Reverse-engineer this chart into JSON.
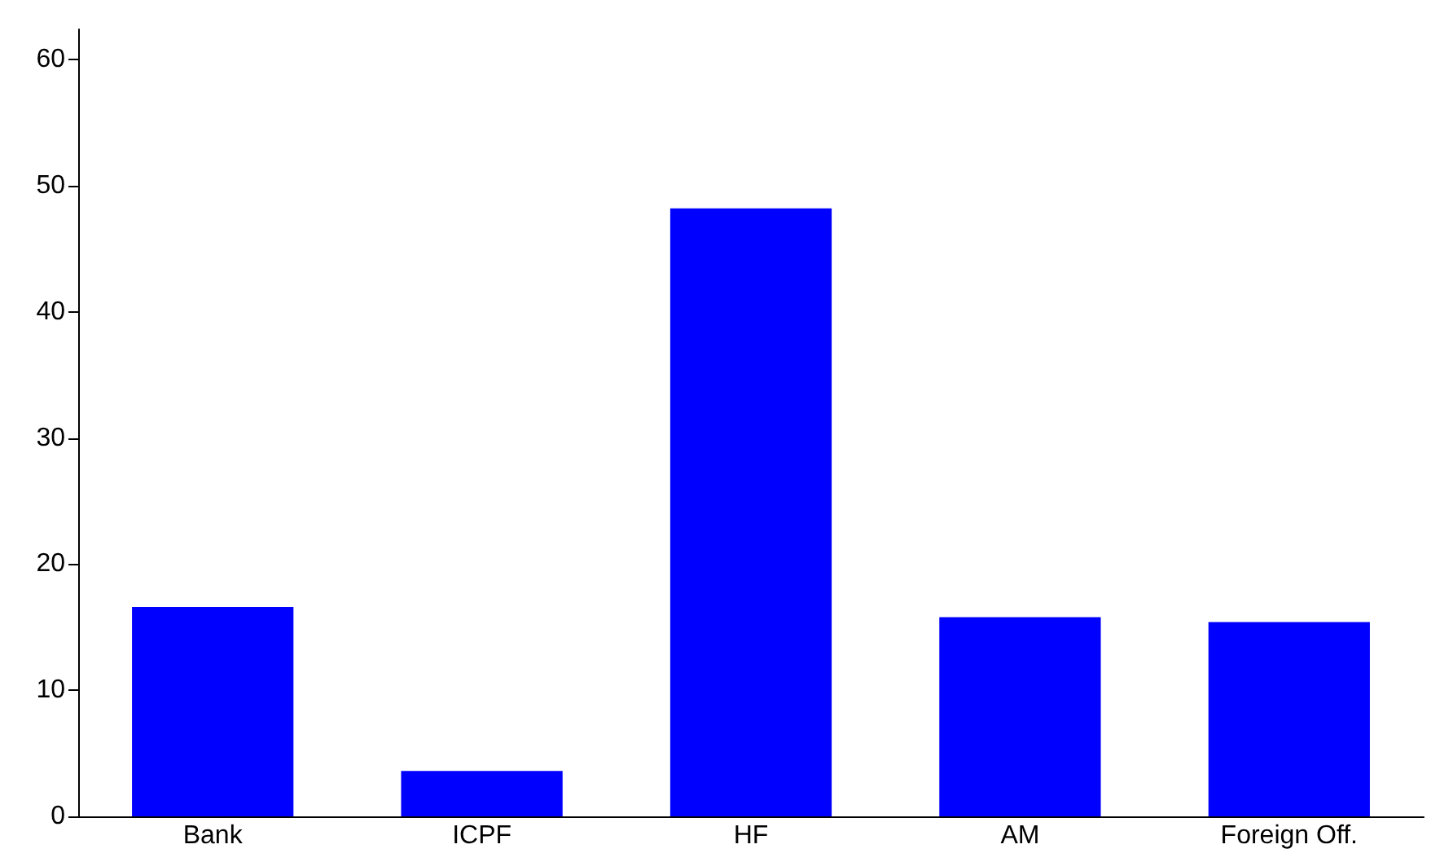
{
  "chart_data": {
    "type": "bar",
    "categories": [
      "Bank",
      "ICPF",
      "HF",
      "AM",
      "Foreign Off."
    ],
    "values": [
      16.6,
      3.6,
      48.2,
      15.8,
      15.4
    ],
    "color": "#0000ff",
    "ylim": [
      0,
      62.4
    ],
    "yticks": [
      0,
      10,
      20,
      30,
      40,
      50,
      60
    ],
    "grid": false
  }
}
